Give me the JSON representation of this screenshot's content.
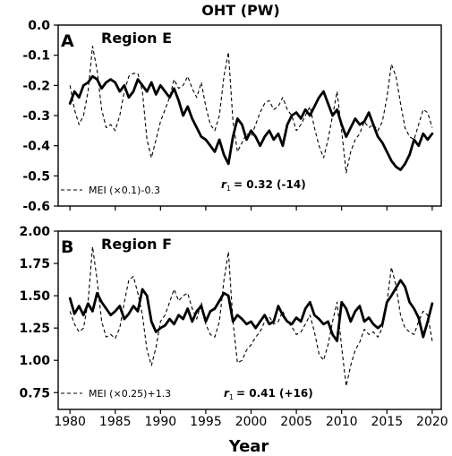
{
  "title": "OHT (PW)",
  "xlabel": "Year",
  "chart_data": [
    {
      "type": "line",
      "panel_letter": "A",
      "region": "Region E",
      "x_range": [
        1978.7,
        2021
      ],
      "xticks": [
        1980,
        1985,
        1990,
        1995,
        2000,
        2005,
        2010,
        2015,
        2020
      ],
      "ylim": [
        -0.6,
        0.0
      ],
      "yticks": [
        "0.0",
        "-0.1",
        "-0.2",
        "-0.3",
        "-0.4",
        "-0.5",
        "-0.6"
      ],
      "ytick_values": [
        0.0,
        -0.1,
        -0.2,
        -0.3,
        -0.4,
        -0.5,
        -0.6
      ],
      "legend_label": "MEI (×0.1)-0.3",
      "corr_label": "= 0.32 (-14)",
      "corr_symbol": "r",
      "corr_sub": "1",
      "series": [
        {
          "style": "solid",
          "x": [
            1980,
            1980.5,
            1981,
            1981.5,
            1982,
            1982.5,
            1983,
            1983.5,
            1984,
            1984.5,
            1985,
            1985.5,
            1986,
            1986.5,
            1987,
            1987.5,
            1988,
            1988.5,
            1989,
            1989.5,
            1990,
            1990.5,
            1991,
            1991.5,
            1992,
            1992.5,
            1993,
            1993.5,
            1994,
            1994.5,
            1995,
            1995.5,
            1996,
            1996.5,
            1997,
            1997.5,
            1998,
            1998.5,
            1999,
            1999.5,
            2000,
            2000.5,
            2001,
            2001.5,
            2002,
            2002.5,
            2003,
            2003.5,
            2004,
            2004.5,
            2005,
            2005.5,
            2006,
            2006.5,
            2007,
            2007.5,
            2008,
            2008.5,
            2009,
            2009.5,
            2010,
            2010.5,
            2011,
            2011.5,
            2012,
            2012.5,
            2013,
            2013.5,
            2014,
            2014.5,
            2015,
            2015.5,
            2016,
            2016.5,
            2017,
            2017.5,
            2018,
            2018.5,
            2019,
            2019.5,
            2020
          ],
          "y": [
            -0.26,
            -0.22,
            -0.24,
            -0.2,
            -0.19,
            -0.17,
            -0.18,
            -0.21,
            -0.19,
            -0.18,
            -0.19,
            -0.22,
            -0.2,
            -0.24,
            -0.22,
            -0.18,
            -0.2,
            -0.22,
            -0.19,
            -0.23,
            -0.2,
            -0.22,
            -0.24,
            -0.21,
            -0.25,
            -0.3,
            -0.27,
            -0.31,
            -0.34,
            -0.37,
            -0.38,
            -0.4,
            -0.42,
            -0.38,
            -0.43,
            -0.46,
            -0.37,
            -0.31,
            -0.33,
            -0.38,
            -0.35,
            -0.37,
            -0.4,
            -0.37,
            -0.35,
            -0.38,
            -0.36,
            -0.4,
            -0.33,
            -0.3,
            -0.29,
            -0.31,
            -0.28,
            -0.3,
            -0.27,
            -0.24,
            -0.22,
            -0.26,
            -0.3,
            -0.28,
            -0.33,
            -0.37,
            -0.34,
            -0.31,
            -0.33,
            -0.32,
            -0.29,
            -0.33,
            -0.37,
            -0.39,
            -0.42,
            -0.45,
            -0.47,
            -0.48,
            -0.46,
            -0.43,
            -0.38,
            -0.4,
            -0.36,
            -0.38,
            -0.36
          ]
        },
        {
          "style": "dashed",
          "x": [
            1980,
            1980.5,
            1981,
            1981.5,
            1982,
            1982.5,
            1983,
            1983.5,
            1984,
            1984.5,
            1985,
            1985.5,
            1986,
            1986.5,
            1987,
            1987.5,
            1988,
            1988.5,
            1989,
            1989.5,
            1990,
            1990.5,
            1991,
            1991.5,
            1992,
            1992.5,
            1993,
            1993.5,
            1994,
            1994.5,
            1995,
            1995.5,
            1996,
            1996.5,
            1997,
            1997.5,
            1998,
            1998.5,
            1999,
            1999.5,
            2000,
            2000.5,
            2001,
            2001.5,
            2002,
            2002.5,
            2003,
            2003.5,
            2004,
            2004.5,
            2005,
            2005.5,
            2006,
            2006.5,
            2007,
            2007.5,
            2008,
            2008.5,
            2009,
            2009.5,
            2010,
            2010.5,
            2011,
            2011.5,
            2012,
            2012.5,
            2013,
            2013.5,
            2014,
            2014.5,
            2015,
            2015.5,
            2016,
            2016.5,
            2017,
            2017.5,
            2018,
            2018.5,
            2019,
            2019.5,
            2020
          ],
          "y": [
            -0.2,
            -0.28,
            -0.33,
            -0.3,
            -0.22,
            -0.07,
            -0.15,
            -0.28,
            -0.34,
            -0.33,
            -0.35,
            -0.3,
            -0.22,
            -0.17,
            -0.16,
            -0.16,
            -0.22,
            -0.38,
            -0.44,
            -0.38,
            -0.32,
            -0.28,
            -0.24,
            -0.18,
            -0.21,
            -0.2,
            -0.17,
            -0.21,
            -0.24,
            -0.19,
            -0.27,
            -0.33,
            -0.35,
            -0.3,
            -0.17,
            -0.09,
            -0.32,
            -0.42,
            -0.39,
            -0.36,
            -0.37,
            -0.33,
            -0.29,
            -0.26,
            -0.25,
            -0.28,
            -0.27,
            -0.24,
            -0.28,
            -0.3,
            -0.35,
            -0.33,
            -0.3,
            -0.27,
            -0.34,
            -0.4,
            -0.44,
            -0.38,
            -0.3,
            -0.22,
            -0.35,
            -0.49,
            -0.42,
            -0.38,
            -0.36,
            -0.32,
            -0.34,
            -0.33,
            -0.35,
            -0.32,
            -0.24,
            -0.13,
            -0.17,
            -0.26,
            -0.34,
            -0.37,
            -0.38,
            -0.33,
            -0.28,
            -0.29,
            -0.34
          ]
        }
      ]
    },
    {
      "type": "line",
      "panel_letter": "B",
      "region": "Region F",
      "x_range": [
        1978.7,
        2021
      ],
      "xticks": [
        1980,
        1985,
        1990,
        1995,
        2000,
        2005,
        2010,
        2015,
        2020
      ],
      "ylim": [
        0.62,
        2.0
      ],
      "yticks": [
        "2.00",
        "1.75",
        "1.50",
        "1.25",
        "1.00",
        "0.75"
      ],
      "ytick_values": [
        2.0,
        1.75,
        1.5,
        1.25,
        1.0,
        0.75
      ],
      "legend_label": "MEI (×0.25)+1.3",
      "corr_label": "= 0.41 (+16)",
      "corr_symbol": "r",
      "corr_sub": "1",
      "series": [
        {
          "style": "solid",
          "x": [
            1980,
            1980.5,
            1981,
            1981.5,
            1982,
            1982.5,
            1983,
            1983.5,
            1984,
            1984.5,
            1985,
            1985.5,
            1986,
            1986.5,
            1987,
            1987.5,
            1988,
            1988.5,
            1989,
            1989.5,
            1990,
            1990.5,
            1991,
            1991.5,
            1992,
            1992.5,
            1993,
            1993.5,
            1994,
            1994.5,
            1995,
            1995.5,
            1996,
            1996.5,
            1997,
            1997.5,
            1998,
            1998.5,
            1999,
            1999.5,
            2000,
            2000.5,
            2001,
            2001.5,
            2002,
            2002.5,
            2003,
            2003.5,
            2004,
            2004.5,
            2005,
            2005.5,
            2006,
            2006.5,
            2007,
            2007.5,
            2008,
            2008.5,
            2009,
            2009.5,
            2010,
            2010.5,
            2011,
            2011.5,
            2012,
            2012.5,
            2013,
            2013.5,
            2014,
            2014.5,
            2015,
            2015.5,
            2016,
            2016.5,
            2017,
            2017.5,
            2018,
            2018.5,
            2019,
            2019.5,
            2020
          ],
          "y": [
            1.48,
            1.36,
            1.42,
            1.35,
            1.44,
            1.38,
            1.52,
            1.45,
            1.4,
            1.35,
            1.38,
            1.42,
            1.32,
            1.36,
            1.42,
            1.38,
            1.55,
            1.5,
            1.3,
            1.22,
            1.25,
            1.27,
            1.32,
            1.28,
            1.35,
            1.32,
            1.4,
            1.3,
            1.38,
            1.42,
            1.3,
            1.38,
            1.4,
            1.46,
            1.52,
            1.5,
            1.3,
            1.35,
            1.32,
            1.28,
            1.3,
            1.25,
            1.3,
            1.35,
            1.28,
            1.3,
            1.42,
            1.35,
            1.3,
            1.28,
            1.33,
            1.3,
            1.4,
            1.45,
            1.35,
            1.32,
            1.28,
            1.3,
            1.2,
            1.15,
            1.45,
            1.4,
            1.3,
            1.38,
            1.42,
            1.3,
            1.33,
            1.28,
            1.25,
            1.28,
            1.45,
            1.5,
            1.56,
            1.62,
            1.57,
            1.45,
            1.4,
            1.33,
            1.18,
            1.3,
            1.44
          ]
        },
        {
          "style": "dashed",
          "x": [
            1980,
            1980.5,
            1981,
            1981.5,
            1982,
            1982.5,
            1983,
            1983.5,
            1984,
            1984.5,
            1985,
            1985.5,
            1986,
            1986.5,
            1987,
            1987.5,
            1988,
            1988.5,
            1989,
            1989.5,
            1990,
            1990.5,
            1991,
            1991.5,
            1992,
            1992.5,
            1993,
            1993.5,
            1994,
            1994.5,
            1995,
            1995.5,
            1996,
            1996.5,
            1997,
            1997.5,
            1998,
            1998.5,
            1999,
            1999.5,
            2000,
            2000.5,
            2001,
            2001.5,
            2002,
            2002.5,
            2003,
            2003.5,
            2004,
            2004.5,
            2005,
            2005.5,
            2006,
            2006.5,
            2007,
            2007.5,
            2008,
            2008.5,
            2009,
            2009.5,
            2010,
            2010.5,
            2011,
            2011.5,
            2012,
            2012.5,
            2013,
            2013.5,
            2014,
            2014.5,
            2015,
            2015.5,
            2016,
            2016.5,
            2017,
            2017.5,
            2018,
            2018.5,
            2019,
            2019.5,
            2020
          ],
          "y": [
            1.38,
            1.28,
            1.22,
            1.25,
            1.45,
            1.88,
            1.62,
            1.3,
            1.18,
            1.2,
            1.17,
            1.25,
            1.45,
            1.62,
            1.65,
            1.52,
            1.35,
            1.08,
            0.96,
            1.1,
            1.3,
            1.35,
            1.45,
            1.55,
            1.46,
            1.5,
            1.52,
            1.4,
            1.32,
            1.45,
            1.28,
            1.2,
            1.18,
            1.3,
            1.62,
            1.84,
            1.3,
            0.98,
            1.0,
            1.08,
            1.12,
            1.18,
            1.22,
            1.3,
            1.34,
            1.28,
            1.3,
            1.38,
            1.3,
            1.26,
            1.2,
            1.22,
            1.28,
            1.35,
            1.22,
            1.05,
            1.0,
            1.12,
            1.3,
            1.45,
            1.1,
            0.8,
            0.96,
            1.08,
            1.14,
            1.24,
            1.2,
            1.22,
            1.18,
            1.25,
            1.45,
            1.72,
            1.58,
            1.35,
            1.25,
            1.22,
            1.2,
            1.3,
            1.38,
            1.35,
            1.15
          ]
        }
      ]
    }
  ]
}
